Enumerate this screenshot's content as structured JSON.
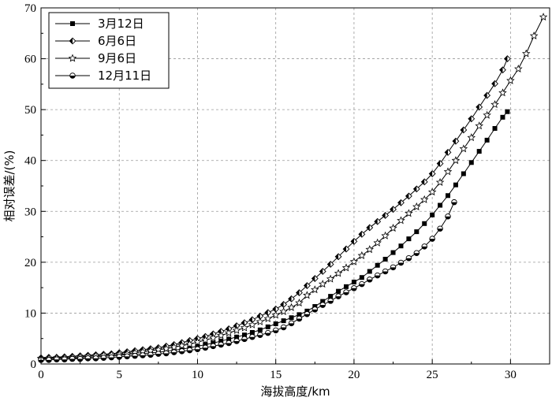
{
  "chart_data": {
    "type": "line",
    "xlabel": "海拔高度/km",
    "ylabel": "相对误差/(%)",
    "xlim": [
      0,
      32.5
    ],
    "ylim": [
      0,
      70
    ],
    "xticks": [
      0,
      5,
      10,
      15,
      20,
      25,
      30
    ],
    "yticks": [
      0,
      10,
      20,
      30,
      40,
      50,
      60,
      70
    ],
    "grid": true,
    "legend_position": "top-left",
    "series": [
      {
        "name": "3月12日",
        "marker": "filled-square",
        "x": [
          0,
          0.5,
          1,
          1.5,
          2,
          2.5,
          3,
          3.5,
          4,
          4.5,
          5,
          5.5,
          6,
          6.5,
          7,
          7.5,
          8,
          8.5,
          9,
          9.5,
          10,
          10.5,
          11,
          11.5,
          12,
          12.5,
          13,
          13.5,
          14,
          14.5,
          15,
          15.5,
          16,
          16.5,
          17,
          17.5,
          18,
          18.5,
          19,
          19.5,
          20,
          20.5,
          21,
          21.5,
          22,
          22.5,
          23,
          23.5,
          24,
          24.5,
          25,
          25.5,
          26,
          26.5,
          27,
          27.5,
          28,
          28.5,
          29,
          29.5,
          29.8
        ],
        "y": [
          1.0,
          1.0,
          1.1,
          1.1,
          1.2,
          1.2,
          1.3,
          1.4,
          1.5,
          1.6,
          1.7,
          1.8,
          1.9,
          2.0,
          2.2,
          2.3,
          2.5,
          2.7,
          2.9,
          3.2,
          3.5,
          3.8,
          4.1,
          4.5,
          4.9,
          5.3,
          5.7,
          6.2,
          6.7,
          7.3,
          7.9,
          8.5,
          9.1,
          9.7,
          10.4,
          11.3,
          12.3,
          13.3,
          14.3,
          15.2,
          16.1,
          17.0,
          18.2,
          19.4,
          20.6,
          21.9,
          23.2,
          24.6,
          26.0,
          27.6,
          29.3,
          31.2,
          33.1,
          35.2,
          37.4,
          39.6,
          41.8,
          44.0,
          46.3,
          48.5,
          49.6
        ]
      },
      {
        "name": "6月6日",
        "marker": "half-filled-diamond",
        "x": [
          0,
          0.5,
          1,
          1.5,
          2,
          2.5,
          3,
          3.5,
          4,
          4.5,
          5,
          5.5,
          6,
          6.5,
          7,
          7.5,
          8,
          8.5,
          9,
          9.5,
          10,
          10.5,
          11,
          11.5,
          12,
          12.5,
          13,
          13.5,
          14,
          14.5,
          15,
          15.5,
          16,
          16.5,
          17,
          17.5,
          18,
          18.5,
          19,
          19.5,
          20,
          20.5,
          21,
          21.5,
          22,
          22.5,
          23,
          23.5,
          24,
          24.5,
          25,
          25.5,
          26,
          26.5,
          27,
          27.5,
          28,
          28.5,
          29,
          29.5,
          29.8
        ],
        "y": [
          1.2,
          1.3,
          1.3,
          1.4,
          1.5,
          1.6,
          1.7,
          1.8,
          1.9,
          2.0,
          2.2,
          2.4,
          2.6,
          2.8,
          3.0,
          3.2,
          3.5,
          3.8,
          4.2,
          4.6,
          5.0,
          5.4,
          5.9,
          6.4,
          6.9,
          7.5,
          8.1,
          8.7,
          9.4,
          10.1,
          10.8,
          11.7,
          12.8,
          14.0,
          15.4,
          16.8,
          18.2,
          19.6,
          21.1,
          22.6,
          24.1,
          25.5,
          26.8,
          28.0,
          29.2,
          30.4,
          31.7,
          33.0,
          34.4,
          35.8,
          37.4,
          39.4,
          41.6,
          43.8,
          46.0,
          48.2,
          50.5,
          52.8,
          55.1,
          57.8,
          60.0
        ]
      },
      {
        "name": "9月6日",
        "marker": "star",
        "x": [
          0,
          0.5,
          1,
          1.5,
          2,
          2.5,
          3,
          3.5,
          4,
          4.5,
          5,
          5.5,
          6,
          6.5,
          7,
          7.5,
          8,
          8.5,
          9,
          9.5,
          10,
          10.5,
          11,
          11.5,
          12,
          12.5,
          13,
          13.5,
          14,
          14.5,
          15,
          15.5,
          16,
          16.5,
          17,
          17.5,
          18,
          18.5,
          19,
          19.5,
          20,
          20.5,
          21,
          21.5,
          22,
          22.5,
          23,
          23.5,
          24,
          24.5,
          25,
          25.5,
          26,
          26.5,
          27,
          27.5,
          28,
          28.5,
          29,
          29.5,
          30,
          30.5,
          31,
          31.5,
          32.1
        ],
        "y": [
          1.1,
          1.1,
          1.2,
          1.2,
          1.3,
          1.4,
          1.5,
          1.6,
          1.7,
          1.8,
          1.9,
          2.0,
          2.2,
          2.4,
          2.6,
          2.8,
          3.0,
          3.3,
          3.6,
          3.9,
          4.3,
          4.7,
          5.1,
          5.6,
          6.1,
          6.6,
          7.1,
          7.7,
          8.3,
          8.9,
          9.6,
          10.3,
          11.1,
          12.0,
          13.5,
          14.6,
          15.7,
          16.7,
          17.8,
          18.9,
          20.1,
          21.3,
          22.5,
          23.8,
          25.2,
          26.7,
          28.2,
          29.6,
          30.9,
          32.3,
          33.8,
          35.7,
          37.8,
          40.0,
          42.3,
          44.5,
          46.8,
          48.9,
          51.0,
          53.3,
          55.7,
          58.0,
          61.0,
          64.5,
          68.2
        ]
      },
      {
        "name": "12月11日",
        "marker": "half-filled-circle",
        "x": [
          0,
          0.5,
          1,
          1.5,
          2,
          2.5,
          3,
          3.5,
          4,
          4.5,
          5,
          5.5,
          6,
          6.5,
          7,
          7.5,
          8,
          8.5,
          9,
          9.5,
          10,
          10.5,
          11,
          11.5,
          12,
          12.5,
          13,
          13.5,
          14,
          14.5,
          15,
          15.5,
          16,
          16.5,
          17,
          17.5,
          18,
          18.5,
          19,
          19.5,
          20,
          20.5,
          21,
          21.5,
          22,
          22.5,
          23,
          23.5,
          24,
          24.5,
          25,
          25.5,
          26,
          26.4
        ],
        "y": [
          0.8,
          0.8,
          0.9,
          0.9,
          1.0,
          1.0,
          1.1,
          1.1,
          1.2,
          1.3,
          1.4,
          1.5,
          1.6,
          1.7,
          1.8,
          2.0,
          2.1,
          2.3,
          2.5,
          2.7,
          2.9,
          3.2,
          3.5,
          3.8,
          4.1,
          4.5,
          4.9,
          5.3,
          5.7,
          6.1,
          6.6,
          7.2,
          8.0,
          8.9,
          9.8,
          10.7,
          11.6,
          12.4,
          13.3,
          14.1,
          14.9,
          15.7,
          16.6,
          17.4,
          18.2,
          19.0,
          19.9,
          20.8,
          21.8,
          23.1,
          24.6,
          26.6,
          29.0,
          31.8
        ]
      }
    ]
  }
}
